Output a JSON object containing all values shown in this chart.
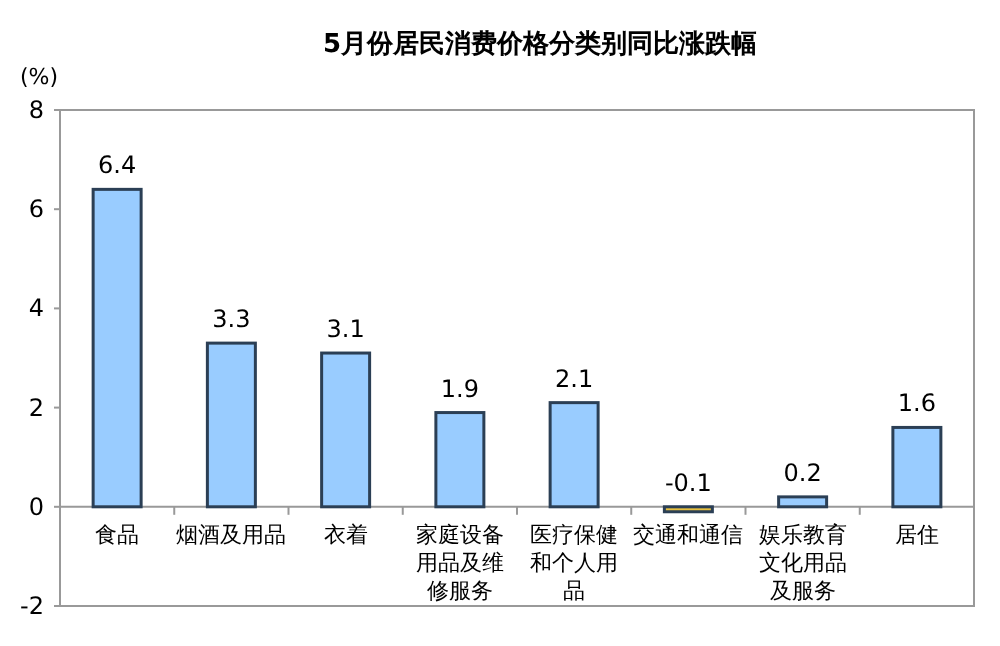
{
  "chart_data": {
    "type": "bar",
    "title": "5月份居民消费价格分类别同比涨跌幅",
    "ylabel": "(%)",
    "categories": [
      "食品",
      "烟酒及用品",
      "衣着",
      "家庭设备用品及维修服务",
      "医疗保健和个人用品",
      "交通和通信",
      "娱乐教育文化用品及服务",
      "居住"
    ],
    "values": [
      6.4,
      3.3,
      3.1,
      1.9,
      2.1,
      -0.1,
      0.2,
      1.6
    ],
    "colors": [
      "#99ccff",
      "#99ccff",
      "#99ccff",
      "#99ccff",
      "#99ccff",
      "#e6c040",
      "#99ccff",
      "#99ccff"
    ],
    "ylim": [
      -2,
      8
    ],
    "yticks": [
      -2,
      0,
      2,
      4,
      6,
      8
    ],
    "data_labels": true
  }
}
